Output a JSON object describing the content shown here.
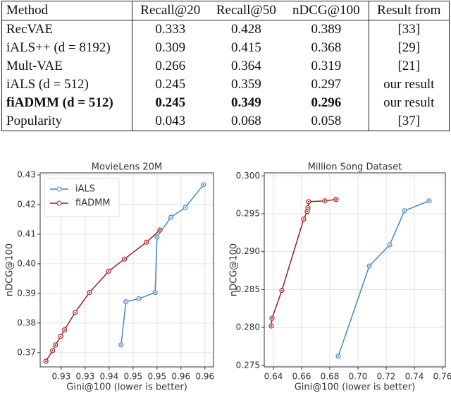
{
  "table": {
    "header": [
      "Method",
      "Recall@20",
      "Recall@50",
      "nDCG@100",
      "Result from"
    ],
    "rows": [
      [
        "RecVAE",
        "0.333",
        "0.428",
        "0.389",
        "[33]"
      ],
      [
        "iALS++ (d = 8192)",
        "0.309",
        "0.415",
        "0.368",
        "[29]"
      ],
      [
        "Mult-VAE",
        "0.266",
        "0.364",
        "0.319",
        "[21]"
      ],
      [
        "iALS (d = 512)",
        "0.245",
        "0.359",
        "0.297",
        "our result"
      ],
      [
        "fiADMM (d = 512)",
        "0.245",
        "0.349",
        "0.296",
        "our result"
      ],
      [
        "Popularity",
        "0.043",
        "0.068",
        "0.058",
        "[37]"
      ]
    ]
  },
  "chart_data": [
    {
      "type": "line",
      "title": "MovieLens 20M",
      "x_label": "Gini@100 (lower is better)",
      "y_label": "nDCG@100",
      "xlim": [
        0.9256,
        0.9618
      ],
      "ylim": [
        0.3652,
        0.4307
      ],
      "xticks": [
        0.93,
        {
          "value": 0.935,
          "label": "0.93"
        },
        0.94,
        {
          "value": 0.945,
          "label": "0.95"
        },
        0.95,
        {
          "value": 0.955,
          "label": "0.96"
        },
        0.96
      ],
      "yticks": [
        0.37,
        0.38,
        0.39,
        {
          "value": 0.4,
          "label": "0.40"
        },
        0.41,
        0.42,
        0.43
      ],
      "grid": true,
      "legend": "upper left",
      "series": [
        {
          "name": "iALS",
          "color": "#4a86c0",
          "x": [
            0.9425,
            0.9435,
            0.9462,
            0.9496,
            0.95,
            0.9529,
            0.9559,
            0.9597
          ],
          "values": [
            0.3726,
            0.3872,
            0.3882,
            0.3903,
            0.409,
            0.4157,
            0.419,
            0.4267
          ]
        },
        {
          "name": "fiADMM",
          "color": "#a01f24",
          "x": [
            0.9268,
            0.9282,
            0.9288,
            0.9299,
            0.9307,
            0.9329,
            0.9359,
            0.9399,
            0.9432,
            0.9478,
            0.9506
          ],
          "values": [
            0.3671,
            0.3707,
            0.3726,
            0.3755,
            0.3777,
            0.3836,
            0.3903,
            0.3975,
            0.4016,
            0.4073,
            0.4114
          ]
        }
      ]
    },
    {
      "type": "line",
      "title": "Million Song Dataset",
      "x_label": "Gini@100 (lower is better)",
      "y_label": "nDCG@100",
      "xlim": [
        0.6335,
        0.762
      ],
      "ylim": [
        0.2748,
        0.3004
      ],
      "xticks": [
        0.64,
        0.66,
        0.68,
        {
          "value": 0.7,
          "label": "0.70"
        },
        0.72,
        0.74,
        0.76
      ],
      "yticks": [
        {
          "value": 0.275,
          "label": "0.275"
        },
        {
          "value": 0.28,
          "label": "0.280"
        },
        {
          "value": 0.285,
          "label": "0.285"
        },
        {
          "value": 0.29,
          "label": "0.290"
        },
        {
          "value": 0.295,
          "label": "0.295"
        },
        {
          "value": 0.3,
          "label": "0.300"
        }
      ],
      "grid": true,
      "series": [
        {
          "name": "iALS",
          "color": "#4a86c0",
          "x": [
            0.686,
            0.708,
            0.7225,
            0.733,
            0.7505
          ],
          "values": [
            0.2762,
            0.2881,
            0.2909,
            0.2954,
            0.2967
          ]
        },
        {
          "name": "fiADMM",
          "color": "#a01f24",
          "x": [
            0.6385,
            0.639,
            0.646,
            0.6615,
            0.664,
            0.6645,
            0.665,
            0.6765,
            0.6845
          ],
          "values": [
            0.2802,
            0.2812,
            0.2849,
            0.2943,
            0.2953,
            0.2958,
            0.2966,
            0.2967,
            0.2969
          ]
        }
      ]
    }
  ]
}
